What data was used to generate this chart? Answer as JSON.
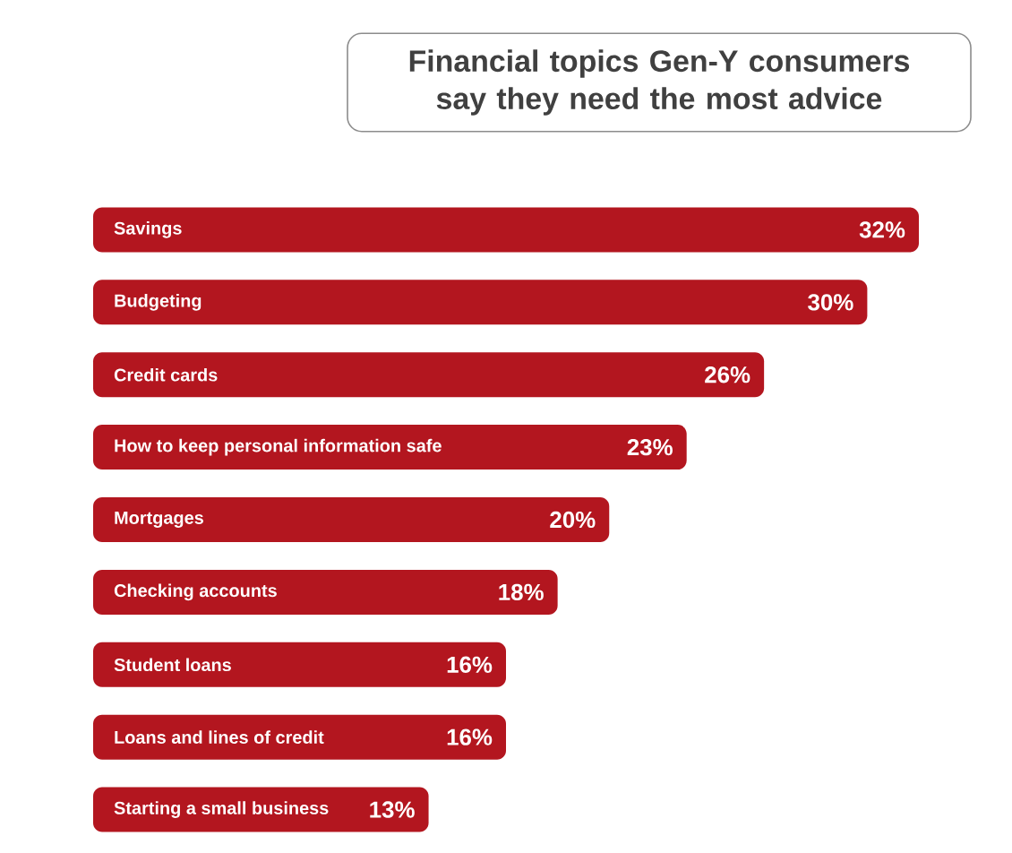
{
  "chart_data": {
    "type": "bar",
    "orientation": "horizontal",
    "title": "Financial topics Gen-Y consumers say they need the most advice",
    "categories": [
      "Savings",
      "Budgeting",
      "Credit cards",
      "How to keep personal information safe",
      "Mortgages",
      "Checking accounts",
      "Student loans",
      "Loans and lines of credit",
      "Starting a small business"
    ],
    "values": [
      32,
      30,
      26,
      23,
      20,
      18,
      16,
      16,
      13
    ],
    "value_labels": [
      "32%",
      "30%",
      "26%",
      "23%",
      "20%",
      "18%",
      "16%",
      "16%",
      "13%"
    ],
    "color": "#b3161f"
  }
}
